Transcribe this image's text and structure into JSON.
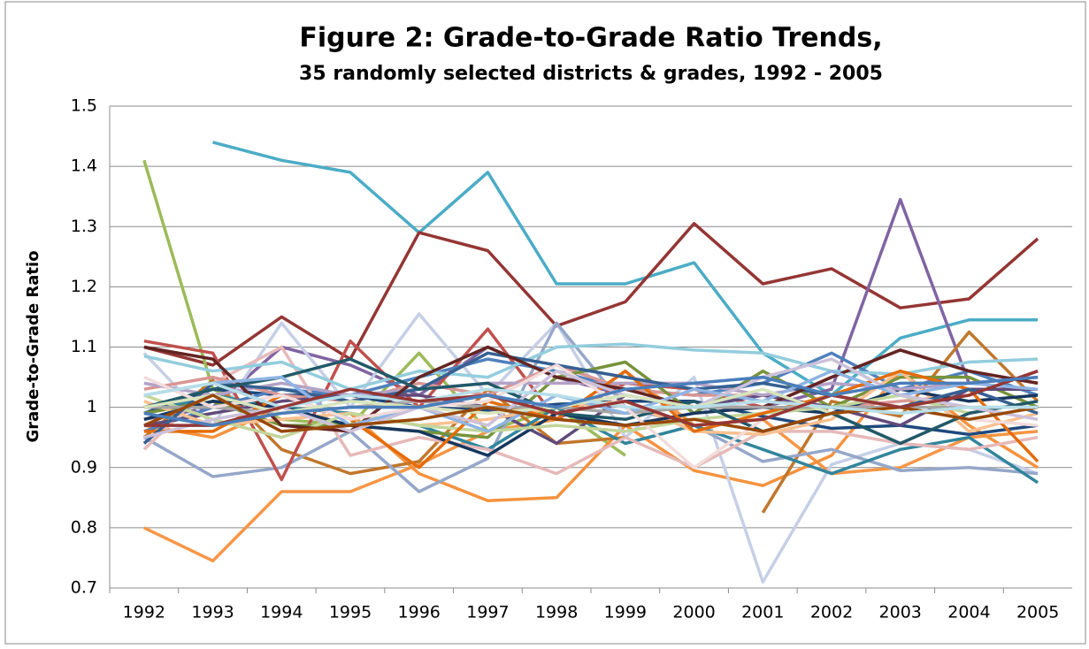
{
  "chart_data": {
    "type": "line",
    "title": "Figure 2: Grade-to-Grade Ratio Trends,",
    "subtitle": "35 randomly selected districts & grades, 1992 - 2005",
    "y_label": "Grade-to-Grade Ratio",
    "categories": [
      "1992",
      "1993",
      "1994",
      "1995",
      "1996",
      "1997",
      "1998",
      "1999",
      "2000",
      "2001",
      "2002",
      "2003",
      "2004",
      "2005"
    ],
    "ylim": [
      0.7,
      1.5
    ],
    "yticks": [
      0.7,
      0.8,
      0.9,
      1,
      1.1,
      1.2,
      1.3,
      1.4,
      1.5
    ],
    "grid": true,
    "series": [
      {
        "color": "#4bacc6",
        "values": [
          null,
          1.44,
          1.41,
          1.39,
          1.29,
          1.39,
          1.205,
          1.205,
          1.24,
          1.09,
          1.02,
          1.115,
          1.145,
          1.145
        ]
      },
      {
        "color": "#943634",
        "values": [
          1.1,
          1.07,
          1.15,
          1.08,
          1.29,
          1.26,
          1.135,
          1.175,
          1.305,
          1.205,
          1.23,
          1.165,
          1.18,
          1.28
        ]
      },
      {
        "color": "#9bbb59",
        "values": [
          1.41,
          1.03,
          0.98,
          0.97,
          1.09,
          0.96,
          1.0,
          0.92,
          null,
          null,
          null,
          null,
          null,
          null
        ]
      },
      {
        "color": "#8064a2",
        "values": [
          0.98,
          1.0,
          1.1,
          1.07,
          1.02,
          1.1,
          1.05,
          1.02,
          1.0,
          1.0,
          1.03,
          1.345,
          1.04,
          1.05
        ]
      },
      {
        "color": "#f79646",
        "values": [
          0.8,
          0.745,
          0.86,
          0.86,
          0.905,
          0.96,
          0.98,
          1.06,
          0.97,
          0.98,
          0.89,
          0.9,
          0.95,
          0.96
        ]
      },
      {
        "color": "#f5923e",
        "values": [
          0.97,
          0.95,
          1.0,
          0.99,
          0.89,
          0.845,
          0.85,
          0.97,
          0.895,
          0.87,
          0.92,
          1.06,
          0.97,
          0.9
        ]
      },
      {
        "color": "#c5cfe6",
        "values": [
          1.09,
          0.97,
          1.14,
          1.0,
          1.155,
          1.02,
          1.14,
          0.95,
          1.05,
          0.71,
          0.905,
          0.94,
          0.93,
          0.89
        ]
      },
      {
        "color": "#c0772c",
        "values": [
          0.95,
          1.045,
          0.93,
          0.89,
          0.91,
          1.03,
          0.94,
          0.95,
          null,
          0.825,
          1.01,
          0.985,
          1.125,
          1.01
        ]
      },
      {
        "color": "#95a7c9",
        "values": [
          0.95,
          0.885,
          0.9,
          0.96,
          0.86,
          0.915,
          1.14,
          1.0,
          0.97,
          0.91,
          0.93,
          0.895,
          0.9,
          0.89
        ]
      },
      {
        "color": "#31859c",
        "values": [
          0.99,
          1.02,
          1.0,
          0.99,
          0.97,
          0.93,
          1.0,
          0.94,
          0.97,
          0.93,
          0.89,
          0.93,
          0.95,
          0.875
        ]
      },
      {
        "color": "#1f497d",
        "values": [
          0.99,
          1.03,
          1.02,
          1.02,
          1.0,
          0.995,
          1.005,
          1.01,
          1.01,
          0.985,
          0.965,
          0.97,
          0.955,
          0.97
        ]
      },
      {
        "color": "#c0504d",
        "values": [
          1.11,
          1.09,
          0.88,
          1.11,
          1.0,
          1.13,
          0.98,
          1.04,
          1.03,
          1.0,
          1.05,
          1.095,
          1.06,
          1.04
        ]
      },
      {
        "color": "#4f81bd",
        "values": [
          0.96,
          1.0,
          1.03,
          1.02,
          1.05,
          1.08,
          1.06,
          1.03,
          1.02,
          1.04,
          1.09,
          1.03,
          1.06,
          1.02
        ]
      },
      {
        "color": "#e6b9b8",
        "values": [
          0.93,
          1.04,
          1.1,
          0.92,
          0.95,
          0.93,
          0.89,
          0.95,
          0.9,
          0.96,
          0.96,
          0.94,
          0.93,
          0.95
        ]
      },
      {
        "color": "#d99694",
        "values": [
          1.03,
          1.05,
          1.02,
          1.01,
          1.04,
          1.02,
          1.07,
          1.03,
          1.02,
          1.02,
          1.0,
          1.01,
          1.02,
          1.06
        ]
      },
      {
        "color": "#77933c",
        "values": [
          0.99,
          1.01,
          0.97,
          0.97,
          0.96,
          0.95,
          1.05,
          1.075,
          0.99,
          1.06,
          1.0,
          1.05,
          1.05,
          1.0
        ]
      },
      {
        "color": "#604a7b",
        "values": [
          0.97,
          0.99,
          1.01,
          1.02,
          1.02,
          1.0,
          0.94,
          1.02,
          1.0,
          1.02,
          1.0,
          0.97,
          1.03,
          1.03
        ]
      },
      {
        "color": "#93cddd",
        "values": [
          1.085,
          1.06,
          1.075,
          1.03,
          1.06,
          1.05,
          1.1,
          1.105,
          1.095,
          1.09,
          1.06,
          1.055,
          1.075,
          1.08
        ]
      },
      {
        "color": "#fac090",
        "values": [
          1.01,
          0.97,
          0.98,
          0.99,
          0.97,
          0.98,
          1.0,
          1.01,
          0.96,
          0.955,
          0.98,
          1.06,
          0.96,
          0.99
        ]
      },
      {
        "color": "#17375e",
        "values": [
          0.98,
          1.01,
          1.0,
          0.97,
          0.96,
          0.92,
          0.99,
          0.97,
          0.99,
          1.0,
          0.99,
          1.03,
          1.01,
          1.02
        ]
      },
      {
        "color": "#b3a2c7",
        "values": [
          1.04,
          1.02,
          1.04,
          1.02,
          1.03,
          1.04,
          1.04,
          1.04,
          1.04,
          1.02,
          1.04,
          1.03,
          1.04,
          1.05
        ]
      },
      {
        "color": "#c3d69b",
        "values": [
          1.02,
          0.98,
          0.95,
          0.99,
          0.97,
          0.96,
          0.97,
          0.96,
          0.98,
          0.99,
          1.0,
          1.02,
          0.99,
          1.01
        ]
      },
      {
        "color": "#e46c0a",
        "values": [
          0.96,
          0.96,
          1.02,
          0.98,
          0.9,
          1.01,
          0.98,
          1.06,
          0.96,
          0.99,
          1.02,
          1.06,
          1.03,
          0.91
        ]
      },
      {
        "color": "#366092",
        "values": [
          0.94,
          1.04,
          1.03,
          1.01,
          1.03,
          1.09,
          1.07,
          1.05,
          1.03,
          1.04,
          1.02,
          1.0,
          1.03,
          0.99
        ]
      },
      {
        "color": "#632523",
        "values": [
          1.1,
          1.08,
          0.97,
          0.96,
          1.05,
          1.1,
          1.05,
          1.03,
          1.0,
          1.0,
          1.05,
          1.095,
          1.06,
          1.04
        ]
      },
      {
        "color": "#215968",
        "values": [
          1.0,
          1.03,
          1.05,
          1.08,
          1.03,
          1.04,
          0.99,
          0.98,
          1.01,
          0.96,
          0.99,
          0.94,
          0.99,
          1.01
        ]
      },
      {
        "color": "#a5a5a5",
        "values": [
          1.0,
          1.0,
          0.99,
          1.0,
          1.01,
          1.0,
          1.0,
          0.99,
          1.0,
          1.0,
          1.0,
          1.0,
          1.0,
          1.0
        ]
      },
      {
        "color": "#8eb4e3",
        "values": [
          1.02,
          1.04,
          1.05,
          0.97,
          1.0,
          0.96,
          1.02,
          0.99,
          1.03,
          1.01,
          1.06,
          1.02,
          1.04,
          1.03
        ]
      },
      {
        "color": "#f2dcdb",
        "values": [
          1.05,
          1.0,
          1.02,
          0.98,
          1.0,
          1.01,
          1.07,
          1.0,
          0.9,
          0.98,
          1.02,
          1.0,
          0.98,
          0.97
        ]
      },
      {
        "color": "#ccc1da",
        "values": [
          0.95,
          0.98,
          1.0,
          0.96,
          1.0,
          0.97,
          1.06,
          1.02,
          1.0,
          1.05,
          1.08,
          1.02,
          1.0,
          0.98
        ]
      },
      {
        "color": "#d7e4bd",
        "values": [
          1.0,
          1.02,
          0.99,
          1.01,
          1.0,
          0.99,
          1.0,
          1.02,
          1.0,
          1.03,
          0.99,
          1.0,
          0.98,
          1.0
        ]
      },
      {
        "color": "#984807",
        "values": [
          0.97,
          1.02,
          0.96,
          0.97,
          0.98,
          1.0,
          0.98,
          0.97,
          0.98,
          0.96,
          0.99,
          1.0,
          0.98,
          1.0
        ]
      },
      {
        "color": "#b7dee8",
        "values": [
          1.02,
          1.04,
          1.0,
          1.02,
          1.01,
          1.03,
          1.02,
          1.0,
          1.0,
          1.01,
          1.0,
          0.99,
          1.0,
          1.0
        ]
      },
      {
        "color": "#953735",
        "values": [
          0.97,
          0.97,
          1.0,
          1.03,
          1.01,
          1.02,
          0.99,
          1.01,
          0.97,
          0.98,
          1.02,
          1.0,
          1.02,
          1.06
        ]
      },
      {
        "color": "#4a7ebb",
        "values": [
          0.99,
          0.97,
          0.99,
          1.0,
          1.0,
          1.02,
          1.0,
          1.03,
          1.04,
          1.05,
          1.02,
          1.04,
          1.04,
          1.05
        ]
      }
    ]
  }
}
